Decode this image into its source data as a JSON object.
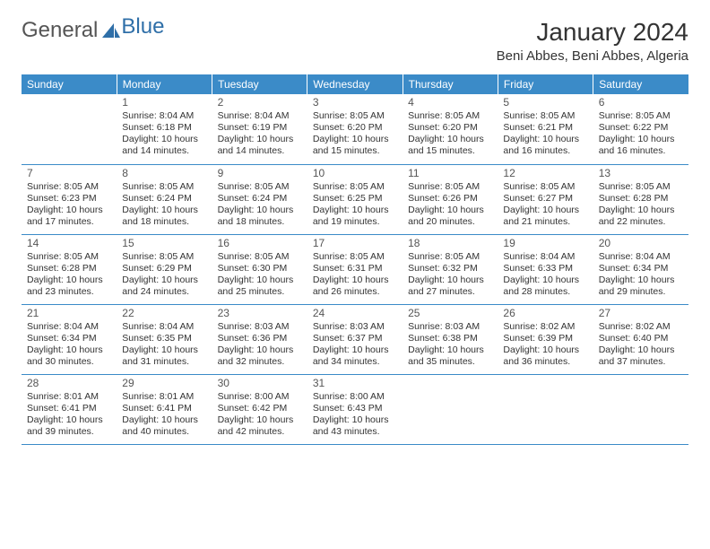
{
  "logo": {
    "word1": "General",
    "word2": "Blue"
  },
  "title": "January 2024",
  "location": "Beni Abbes, Beni Abbes, Algeria",
  "colors": {
    "header_bg": "#3b8bc8",
    "header_text": "#ffffff",
    "row_border": "#3b8bc8",
    "logo_gray": "#555555",
    "logo_blue": "#2f6fa8",
    "text": "#333333",
    "daynum": "#555555",
    "bg": "#ffffff"
  },
  "day_headers": [
    "Sunday",
    "Monday",
    "Tuesday",
    "Wednesday",
    "Thursday",
    "Friday",
    "Saturday"
  ],
  "weeks": [
    [
      null,
      {
        "n": "1",
        "sr": "Sunrise: 8:04 AM",
        "ss": "Sunset: 6:18 PM",
        "d1": "Daylight: 10 hours",
        "d2": "and 14 minutes."
      },
      {
        "n": "2",
        "sr": "Sunrise: 8:04 AM",
        "ss": "Sunset: 6:19 PM",
        "d1": "Daylight: 10 hours",
        "d2": "and 14 minutes."
      },
      {
        "n": "3",
        "sr": "Sunrise: 8:05 AM",
        "ss": "Sunset: 6:20 PM",
        "d1": "Daylight: 10 hours",
        "d2": "and 15 minutes."
      },
      {
        "n": "4",
        "sr": "Sunrise: 8:05 AM",
        "ss": "Sunset: 6:20 PM",
        "d1": "Daylight: 10 hours",
        "d2": "and 15 minutes."
      },
      {
        "n": "5",
        "sr": "Sunrise: 8:05 AM",
        "ss": "Sunset: 6:21 PM",
        "d1": "Daylight: 10 hours",
        "d2": "and 16 minutes."
      },
      {
        "n": "6",
        "sr": "Sunrise: 8:05 AM",
        "ss": "Sunset: 6:22 PM",
        "d1": "Daylight: 10 hours",
        "d2": "and 16 minutes."
      }
    ],
    [
      {
        "n": "7",
        "sr": "Sunrise: 8:05 AM",
        "ss": "Sunset: 6:23 PM",
        "d1": "Daylight: 10 hours",
        "d2": "and 17 minutes."
      },
      {
        "n": "8",
        "sr": "Sunrise: 8:05 AM",
        "ss": "Sunset: 6:24 PM",
        "d1": "Daylight: 10 hours",
        "d2": "and 18 minutes."
      },
      {
        "n": "9",
        "sr": "Sunrise: 8:05 AM",
        "ss": "Sunset: 6:24 PM",
        "d1": "Daylight: 10 hours",
        "d2": "and 18 minutes."
      },
      {
        "n": "10",
        "sr": "Sunrise: 8:05 AM",
        "ss": "Sunset: 6:25 PM",
        "d1": "Daylight: 10 hours",
        "d2": "and 19 minutes."
      },
      {
        "n": "11",
        "sr": "Sunrise: 8:05 AM",
        "ss": "Sunset: 6:26 PM",
        "d1": "Daylight: 10 hours",
        "d2": "and 20 minutes."
      },
      {
        "n": "12",
        "sr": "Sunrise: 8:05 AM",
        "ss": "Sunset: 6:27 PM",
        "d1": "Daylight: 10 hours",
        "d2": "and 21 minutes."
      },
      {
        "n": "13",
        "sr": "Sunrise: 8:05 AM",
        "ss": "Sunset: 6:28 PM",
        "d1": "Daylight: 10 hours",
        "d2": "and 22 minutes."
      }
    ],
    [
      {
        "n": "14",
        "sr": "Sunrise: 8:05 AM",
        "ss": "Sunset: 6:28 PM",
        "d1": "Daylight: 10 hours",
        "d2": "and 23 minutes."
      },
      {
        "n": "15",
        "sr": "Sunrise: 8:05 AM",
        "ss": "Sunset: 6:29 PM",
        "d1": "Daylight: 10 hours",
        "d2": "and 24 minutes."
      },
      {
        "n": "16",
        "sr": "Sunrise: 8:05 AM",
        "ss": "Sunset: 6:30 PM",
        "d1": "Daylight: 10 hours",
        "d2": "and 25 minutes."
      },
      {
        "n": "17",
        "sr": "Sunrise: 8:05 AM",
        "ss": "Sunset: 6:31 PM",
        "d1": "Daylight: 10 hours",
        "d2": "and 26 minutes."
      },
      {
        "n": "18",
        "sr": "Sunrise: 8:05 AM",
        "ss": "Sunset: 6:32 PM",
        "d1": "Daylight: 10 hours",
        "d2": "and 27 minutes."
      },
      {
        "n": "19",
        "sr": "Sunrise: 8:04 AM",
        "ss": "Sunset: 6:33 PM",
        "d1": "Daylight: 10 hours",
        "d2": "and 28 minutes."
      },
      {
        "n": "20",
        "sr": "Sunrise: 8:04 AM",
        "ss": "Sunset: 6:34 PM",
        "d1": "Daylight: 10 hours",
        "d2": "and 29 minutes."
      }
    ],
    [
      {
        "n": "21",
        "sr": "Sunrise: 8:04 AM",
        "ss": "Sunset: 6:34 PM",
        "d1": "Daylight: 10 hours",
        "d2": "and 30 minutes."
      },
      {
        "n": "22",
        "sr": "Sunrise: 8:04 AM",
        "ss": "Sunset: 6:35 PM",
        "d1": "Daylight: 10 hours",
        "d2": "and 31 minutes."
      },
      {
        "n": "23",
        "sr": "Sunrise: 8:03 AM",
        "ss": "Sunset: 6:36 PM",
        "d1": "Daylight: 10 hours",
        "d2": "and 32 minutes."
      },
      {
        "n": "24",
        "sr": "Sunrise: 8:03 AM",
        "ss": "Sunset: 6:37 PM",
        "d1": "Daylight: 10 hours",
        "d2": "and 34 minutes."
      },
      {
        "n": "25",
        "sr": "Sunrise: 8:03 AM",
        "ss": "Sunset: 6:38 PM",
        "d1": "Daylight: 10 hours",
        "d2": "and 35 minutes."
      },
      {
        "n": "26",
        "sr": "Sunrise: 8:02 AM",
        "ss": "Sunset: 6:39 PM",
        "d1": "Daylight: 10 hours",
        "d2": "and 36 minutes."
      },
      {
        "n": "27",
        "sr": "Sunrise: 8:02 AM",
        "ss": "Sunset: 6:40 PM",
        "d1": "Daylight: 10 hours",
        "d2": "and 37 minutes."
      }
    ],
    [
      {
        "n": "28",
        "sr": "Sunrise: 8:01 AM",
        "ss": "Sunset: 6:41 PM",
        "d1": "Daylight: 10 hours",
        "d2": "and 39 minutes."
      },
      {
        "n": "29",
        "sr": "Sunrise: 8:01 AM",
        "ss": "Sunset: 6:41 PM",
        "d1": "Daylight: 10 hours",
        "d2": "and 40 minutes."
      },
      {
        "n": "30",
        "sr": "Sunrise: 8:00 AM",
        "ss": "Sunset: 6:42 PM",
        "d1": "Daylight: 10 hours",
        "d2": "and 42 minutes."
      },
      {
        "n": "31",
        "sr": "Sunrise: 8:00 AM",
        "ss": "Sunset: 6:43 PM",
        "d1": "Daylight: 10 hours",
        "d2": "and 43 minutes."
      },
      null,
      null,
      null
    ]
  ]
}
